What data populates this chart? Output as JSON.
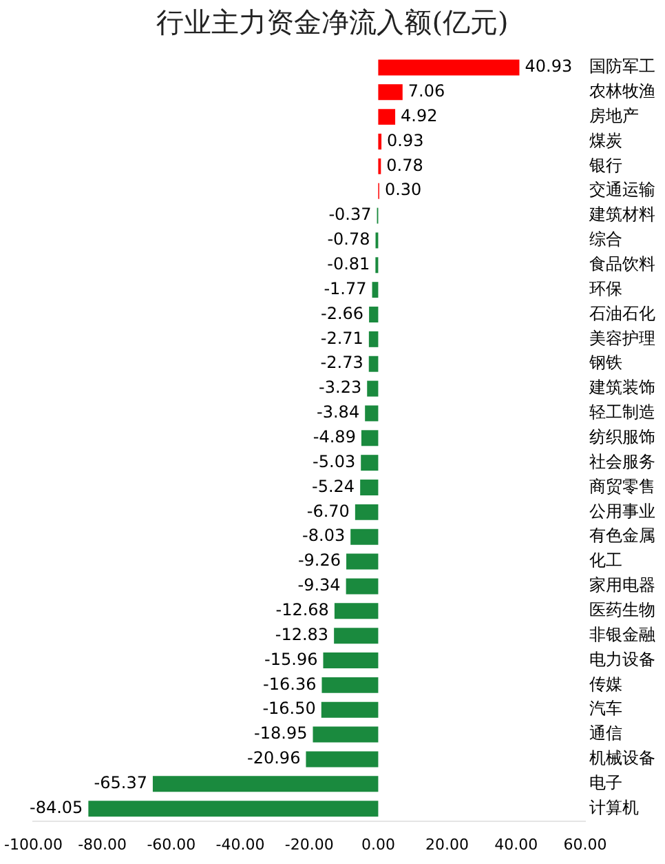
{
  "chart_data": {
    "type": "bar",
    "orientation": "horizontal",
    "title": "行业主力资金净流入额(亿元)",
    "categories": [
      "国防军工",
      "农林牧渔",
      "房地产",
      "煤炭",
      "银行",
      "交通运输",
      "建筑材料",
      "综合",
      "食品饮料",
      "环保",
      "石油石化",
      "美容护理",
      "钢铁",
      "建筑装饰",
      "轻工制造",
      "纺织服饰",
      "社会服务",
      "商贸零售",
      "公用事业",
      "有色金属",
      "化工",
      "家用电器",
      "医药生物",
      "非银金融",
      "电力设备",
      "传媒",
      "汽车",
      "通信",
      "机械设备",
      "电子",
      "计算机"
    ],
    "values": [
      40.93,
      7.06,
      4.92,
      0.93,
      0.78,
      0.3,
      -0.37,
      -0.78,
      -0.81,
      -1.77,
      -2.66,
      -2.71,
      -2.73,
      -3.23,
      -3.84,
      -4.89,
      -5.03,
      -5.24,
      -6.7,
      -8.03,
      -9.26,
      -9.34,
      -12.68,
      -12.83,
      -15.96,
      -16.36,
      -16.5,
      -18.95,
      -20.96,
      -65.37,
      -84.05
    ],
    "value_labels": [
      "40.93",
      "7.06",
      "4.92",
      "0.93",
      "0.78",
      "0.30",
      "-0.37",
      "-0.78",
      "-0.81",
      "-1.77",
      "-2.66",
      "-2.71",
      "-2.73",
      "-3.23",
      "-3.84",
      "-4.89",
      "-5.03",
      "-5.24",
      "-6.70",
      "-8.03",
      "-9.26",
      "-9.34",
      "-12.68",
      "-12.83",
      "-15.96",
      "-16.36",
      "-16.50",
      "-18.95",
      "-20.96",
      "-65.37",
      "-84.05"
    ],
    "colors": [
      "#ff0000",
      "#ff0000",
      "#ff0000",
      "#ff0000",
      "#ff0000",
      "#ff0000",
      "#1a8a3e",
      "#1a8a3e",
      "#1a8a3e",
      "#1a8a3e",
      "#1a8a3e",
      "#1a8a3e",
      "#1a8a3e",
      "#1a8a3e",
      "#1a8a3e",
      "#1a8a3e",
      "#1a8a3e",
      "#1a8a3e",
      "#1a8a3e",
      "#1a8a3e",
      "#1a8a3e",
      "#1a8a3e",
      "#1a8a3e",
      "#1a8a3e",
      "#1a8a3e",
      "#1a8a3e",
      "#1a8a3e",
      "#1a8a3e",
      "#1a8a3e",
      "#1a8a3e",
      "#1a8a3e"
    ],
    "xlim": [
      -100,
      60
    ],
    "xticks": [
      {
        "value": -100,
        "label": "-100.00"
      },
      {
        "value": -80,
        "label": "-80.00"
      },
      {
        "value": -60,
        "label": "-60.00"
      },
      {
        "value": -40,
        "label": "-40.00"
      },
      {
        "value": -20,
        "label": "-20.00"
      },
      {
        "value": 0,
        "label": "0.00"
      },
      {
        "value": 20,
        "label": "20.00"
      },
      {
        "value": 40,
        "label": "40.00"
      },
      {
        "value": 60,
        "label": "60.00"
      }
    ],
    "grid": false,
    "legend": false
  }
}
